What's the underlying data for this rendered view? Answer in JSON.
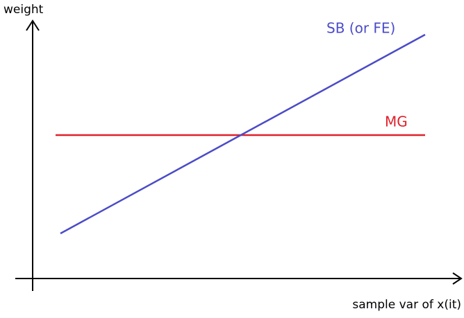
{
  "axes": {
    "y_label": "weight",
    "x_label": "sample var of x(it)"
  },
  "lines": [
    {
      "label": "SB (or FE)"
    },
    {
      "label": "MG"
    }
  ]
}
